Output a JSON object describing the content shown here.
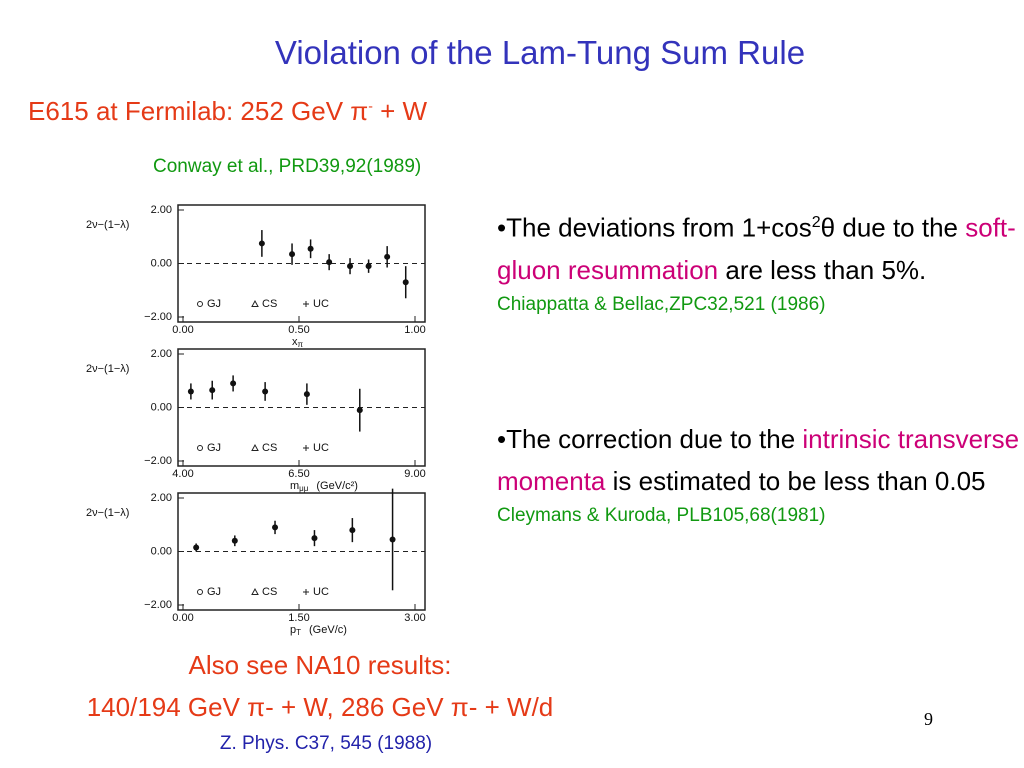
{
  "header": {
    "title": "Violation of the Lam-Tung Sum Rule",
    "subtitle": "E615 at Fermilab: 252 GeV π",
    "subtitle_sup": "-",
    "subtitle_tail": "+ W",
    "citation": "Conway et al., PRD39,92(1989)"
  },
  "figure": {
    "y_label": "2ν−(1−λ)",
    "legend": [
      "GJ",
      "CS",
      "UC"
    ],
    "panels": [
      {
        "x_label": "x",
        "x_label_sub": "π",
        "xlim": [
          0,
          1
        ],
        "ylim": [
          -2,
          2
        ],
        "xticks": [
          {
            "value": 0,
            "label": "0.00"
          },
          {
            "value": 0.5,
            "label": "0.50"
          },
          {
            "value": 1,
            "label": "1.00"
          }
        ],
        "yticks": [
          {
            "value": -2,
            "label": "−2.00"
          },
          {
            "value": 0,
            "label": "0.00"
          },
          {
            "value": 2,
            "label": "2.00"
          }
        ],
        "x": [
          0.34,
          0.47,
          0.55,
          0.63,
          0.72,
          0.8,
          0.88,
          0.96
        ],
        "values": [
          0.75,
          0.35,
          0.55,
          0.05,
          -0.1,
          -0.1,
          0.25,
          -0.7
        ],
        "errors": [
          0.5,
          0.4,
          0.35,
          0.3,
          0.3,
          0.25,
          0.4,
          0.6
        ]
      },
      {
        "x_label": "m",
        "x_label_sub": "μμ",
        "x_unit": "(GeV/c²)",
        "xlim": [
          4,
          9
        ],
        "ylim": [
          -2,
          2
        ],
        "xticks": [
          {
            "value": 4,
            "label": "4.00"
          },
          {
            "value": 6.5,
            "label": "6.50"
          },
          {
            "value": 9,
            "label": "9.00"
          }
        ],
        "yticks": [
          {
            "value": -2,
            "label": "−2.00"
          },
          {
            "value": 0,
            "label": "0.00"
          },
          {
            "value": 2,
            "label": "2.00"
          }
        ],
        "x": [
          4.17,
          4.63,
          5.08,
          5.77,
          6.67,
          7.81
        ],
        "values": [
          0.6,
          0.65,
          0.9,
          0.6,
          0.5,
          -0.1
        ],
        "errors": [
          0.3,
          0.35,
          0.3,
          0.35,
          0.4,
          0.8
        ]
      },
      {
        "x_label": "p",
        "x_label_sub": "T",
        "x_unit": "(GeV/c)",
        "xlim": [
          0,
          3
        ],
        "ylim": [
          -2,
          2
        ],
        "xticks": [
          {
            "value": 0,
            "label": "0.00"
          },
          {
            "value": 1.5,
            "label": "1.50"
          },
          {
            "value": 3,
            "label": "3.00"
          }
        ],
        "yticks": [
          {
            "value": -2,
            "label": "−2.00"
          },
          {
            "value": 0,
            "label": "0.00"
          },
          {
            "value": 2,
            "label": "2.00"
          }
        ],
        "x": [
          0.17,
          0.67,
          1.19,
          1.7,
          2.19,
          2.71
        ],
        "values": [
          0.15,
          0.4,
          0.9,
          0.5,
          0.8,
          0.45
        ],
        "errors": [
          0.15,
          0.2,
          0.25,
          0.3,
          0.45,
          1.9
        ]
      }
    ]
  },
  "bullets": [
    {
      "text": "•The deviations from 1+cos",
      "sup": "2",
      "tail": "θ due to the",
      "highlight": "soft-gluon resummation",
      "rest": "are less than 5%.",
      "reference": "Chiappatta & Bellac,ZPC32,521 (1986)"
    },
    {
      "text": "•The correction due to the",
      "highlight": "intrinsic transverse momenta",
      "rest": "is estimated to be less than 0.05",
      "reference": "Cleymans & Kuroda, PLB105,68(1981)"
    }
  ],
  "footer": {
    "line1": "Also see NA10 results:",
    "line2": "140/194 GeV π- + W, 286 GeV π- + W/d",
    "line3": "Z. Phys. C37, 545 (1988)",
    "page": "9"
  }
}
